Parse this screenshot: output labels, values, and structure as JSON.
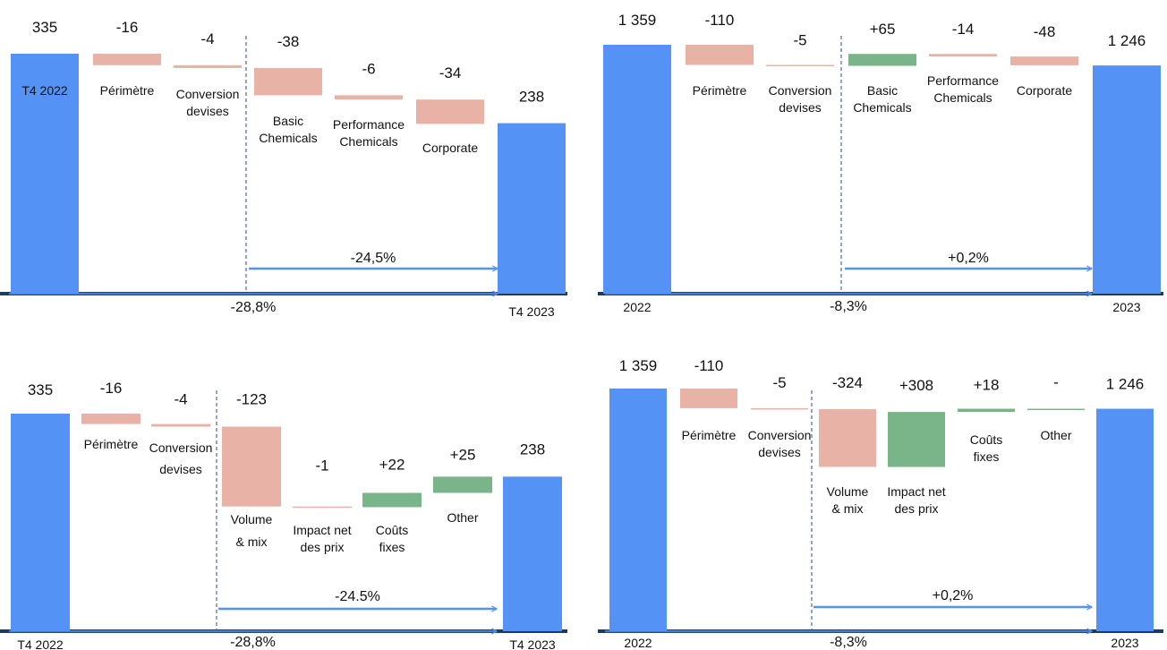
{
  "colors": {
    "total_bar": "#5592f5",
    "negative_bar": "#e8b2a7",
    "positive_bar": "#79b588",
    "axis_line": "#1e3a5f",
    "arrow": "#5592f5",
    "divider": "#2b4a8a"
  },
  "chart_data": [
    {
      "type": "bar",
      "subtype": "waterfall",
      "categories": [
        "T4 2022",
        "Périmètre",
        "Conversion devises",
        "Basic Chemicals",
        "Performance Chemicals",
        "Corporate",
        "T4 2023"
      ],
      "value_labels": [
        "335",
        "-16",
        "-4",
        "-38",
        "-6",
        "-34",
        "238"
      ],
      "values": [
        335,
        -16,
        -4,
        -38,
        -6,
        -34,
        238
      ],
      "kinds": [
        "total",
        "delta",
        "delta",
        "delta",
        "delta",
        "delta",
        "total"
      ],
      "annotations": [
        "-24,5%",
        "-28,8%"
      ]
    },
    {
      "type": "bar",
      "subtype": "waterfall",
      "categories": [
        "2022",
        "Périmètre",
        "Conversion devises",
        "Basic Chemicals",
        "Performance Chemicals",
        "Corporate",
        "2023"
      ],
      "value_labels": [
        "1 359",
        "-110",
        "-5",
        "+65",
        "-14",
        "-48",
        "1 246"
      ],
      "values": [
        1359,
        -110,
        -5,
        65,
        -14,
        -48,
        1246
      ],
      "kinds": [
        "total",
        "delta",
        "delta",
        "delta",
        "delta",
        "delta",
        "total"
      ],
      "annotations": [
        "+0,2%",
        "-8,3%"
      ]
    },
    {
      "type": "bar",
      "subtype": "waterfall",
      "categories": [
        "T4 2022",
        "Périmètre",
        "Conversion devises",
        "Volume & mix",
        "Impact net des prix",
        "Coûts fixes",
        "Other",
        "T4 2023"
      ],
      "value_labels": [
        "335",
        "-16",
        "-4",
        "-123",
        "-1",
        "+22",
        "+25",
        "238"
      ],
      "values": [
        335,
        -16,
        -4,
        -123,
        -1,
        22,
        25,
        238
      ],
      "kinds": [
        "total",
        "delta",
        "delta",
        "delta",
        "delta",
        "delta",
        "delta",
        "total"
      ],
      "annotations": [
        "-24.5%",
        "-28,8%"
      ]
    },
    {
      "type": "bar",
      "subtype": "waterfall",
      "categories": [
        "2022",
        "Périmètre",
        "Conversion devises",
        "Volume & mix",
        "Impact net des prix",
        "Coûts fixes",
        "Other",
        "2023"
      ],
      "value_labels": [
        "1 359",
        "-110",
        "-5",
        "-324",
        "+308",
        "+18",
        "-",
        "1 246"
      ],
      "values": [
        1359,
        -110,
        -5,
        -324,
        308,
        18,
        0,
        1246
      ],
      "kinds": [
        "total",
        "delta",
        "delta",
        "delta",
        "delta",
        "delta",
        "delta",
        "total"
      ],
      "annotations": [
        "+0,2%",
        "-8,3%"
      ]
    }
  ]
}
